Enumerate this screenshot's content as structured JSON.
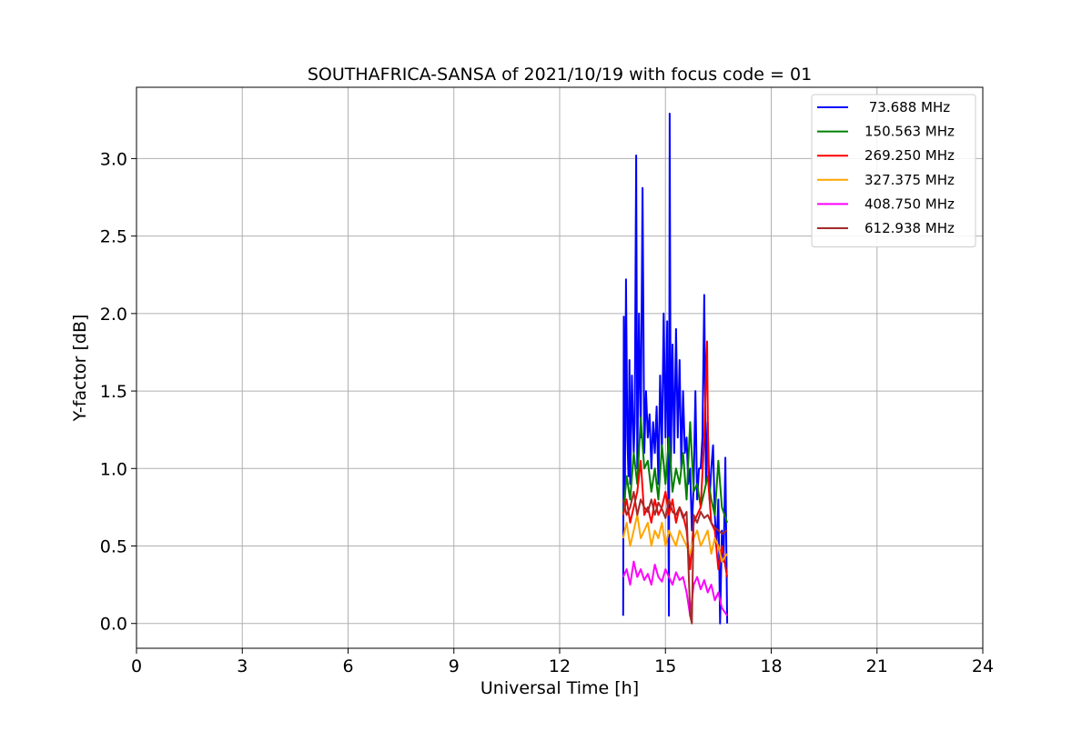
{
  "chart_data": {
    "type": "line",
    "title": "SOUTHAFRICA-SANSA of 2021/10/19 with focus code = 01",
    "xlabel": "Universal Time [h]",
    "ylabel": "Y-factor [dB]",
    "xlim": [
      0,
      24
    ],
    "ylim": [
      -0.16,
      3.46
    ],
    "xticks": [
      0,
      3,
      6,
      9,
      12,
      15,
      18,
      21,
      24
    ],
    "xtick_labels": [
      "0",
      "3",
      "6",
      "9",
      "12",
      "15",
      "18",
      "21",
      "24"
    ],
    "yticks": [
      0.0,
      0.5,
      1.0,
      1.5,
      2.0,
      2.5,
      3.0
    ],
    "ytick_labels": [
      "0.0",
      "0.5",
      "1.0",
      "1.5",
      "2.0",
      "2.5",
      "3.0"
    ],
    "grid": true,
    "legend_position": "top-right",
    "series": [
      {
        "name": " 73.688 MHz",
        "color": "#0000ff",
        "x": [
          13.8,
          13.82,
          13.85,
          13.88,
          13.92,
          13.95,
          13.98,
          14.0,
          14.05,
          14.1,
          14.13,
          14.17,
          14.2,
          14.25,
          14.3,
          14.35,
          14.4,
          14.45,
          14.5,
          14.55,
          14.6,
          14.65,
          14.7,
          14.75,
          14.8,
          14.85,
          14.9,
          14.95,
          15.0,
          15.05,
          15.1,
          15.12,
          15.15,
          15.2,
          15.25,
          15.3,
          15.35,
          15.4,
          15.45,
          15.5,
          15.55,
          15.6,
          15.65,
          15.7,
          15.75,
          15.8,
          15.85,
          15.9,
          15.95,
          16.0,
          16.05,
          16.1,
          16.15,
          16.2,
          16.25,
          16.3,
          16.35,
          16.4,
          16.45,
          16.5,
          16.55,
          16.6,
          16.65,
          16.7,
          16.75
        ],
        "y": [
          0.05,
          1.98,
          0.8,
          2.22,
          1.2,
          0.95,
          1.7,
          0.9,
          1.6,
          1.1,
          1.3,
          3.02,
          1.0,
          2.0,
          1.2,
          2.81,
          1.1,
          1.5,
          1.2,
          1.35,
          1.0,
          1.3,
          1.1,
          1.4,
          0.9,
          1.6,
          1.1,
          2.0,
          1.2,
          1.95,
          0.05,
          3.29,
          1.0,
          1.8,
          1.1,
          1.9,
          1.2,
          1.7,
          1.0,
          1.5,
          1.1,
          1.2,
          0.9,
          1.0,
          0.6,
          0.9,
          1.5,
          0.8,
          1.0,
          1.0,
          1.2,
          2.12,
          0.9,
          1.3,
          0.8,
          1.0,
          1.15,
          0.7,
          0.5,
          0.8,
          0.0,
          0.6,
          0.4,
          1.07,
          0.0
        ]
      },
      {
        "name": "150.563 MHz",
        "color": "#008000",
        "x": [
          13.8,
          13.9,
          14.0,
          14.1,
          14.2,
          14.3,
          14.4,
          14.5,
          14.6,
          14.7,
          14.8,
          14.9,
          15.0,
          15.1,
          15.2,
          15.3,
          15.4,
          15.5,
          15.6,
          15.7,
          15.8,
          15.9,
          16.0,
          16.1,
          16.2,
          16.3,
          16.4,
          16.5,
          16.6,
          16.75
        ],
        "y": [
          0.7,
          0.95,
          0.8,
          1.1,
          0.9,
          1.33,
          1.0,
          1.05,
          0.85,
          1.0,
          0.8,
          1.15,
          0.9,
          1.2,
          0.85,
          1.0,
          0.9,
          1.1,
          0.8,
          1.3,
          0.85,
          0.9,
          0.75,
          0.85,
          0.95,
          0.8,
          0.7,
          1.05,
          0.75,
          0.65
        ]
      },
      {
        "name": "269.250 MHz",
        "color": "#ff0000",
        "x": [
          13.8,
          13.9,
          14.0,
          14.1,
          14.2,
          14.3,
          14.4,
          14.5,
          14.6,
          14.7,
          14.8,
          14.9,
          15.0,
          15.1,
          15.2,
          15.3,
          15.4,
          15.5,
          15.6,
          15.7,
          15.8,
          15.9,
          16.0,
          16.1,
          16.18,
          16.22,
          16.3,
          16.4,
          16.5,
          16.6,
          16.75
        ],
        "y": [
          0.7,
          0.8,
          0.65,
          0.75,
          0.85,
          1.05,
          0.7,
          0.75,
          0.65,
          0.8,
          0.7,
          0.75,
          0.85,
          0.7,
          0.8,
          0.65,
          0.75,
          0.7,
          0.6,
          0.35,
          0.65,
          0.7,
          0.75,
          1.2,
          1.82,
          0.9,
          0.65,
          0.6,
          0.35,
          0.5,
          0.3
        ]
      },
      {
        "name": "327.375 MHz",
        "color": "#ffa500",
        "x": [
          13.8,
          13.9,
          14.0,
          14.1,
          14.2,
          14.3,
          14.4,
          14.5,
          14.6,
          14.7,
          14.8,
          14.9,
          15.0,
          15.1,
          15.2,
          15.3,
          15.4,
          15.5,
          15.6,
          15.7,
          15.8,
          15.9,
          16.0,
          16.1,
          16.2,
          16.3,
          16.4,
          16.5,
          16.6,
          16.75
        ],
        "y": [
          0.55,
          0.65,
          0.5,
          0.6,
          0.7,
          0.55,
          0.6,
          0.65,
          0.5,
          0.6,
          0.55,
          0.65,
          0.5,
          0.6,
          0.55,
          0.5,
          0.6,
          0.55,
          0.5,
          0.45,
          0.55,
          0.6,
          0.5,
          0.55,
          0.6,
          0.45,
          0.55,
          0.5,
          0.4,
          0.45
        ]
      },
      {
        "name": "408.750 MHz",
        "color": "#ff00ff",
        "x": [
          13.8,
          13.9,
          14.0,
          14.1,
          14.2,
          14.3,
          14.4,
          14.5,
          14.6,
          14.7,
          14.8,
          14.9,
          15.0,
          15.1,
          15.2,
          15.3,
          15.4,
          15.5,
          15.6,
          15.7,
          15.8,
          15.9,
          16.0,
          16.1,
          16.2,
          16.3,
          16.4,
          16.5,
          16.6,
          16.75
        ],
        "y": [
          0.3,
          0.35,
          0.25,
          0.4,
          0.3,
          0.35,
          0.28,
          0.32,
          0.25,
          0.38,
          0.3,
          0.27,
          0.35,
          0.3,
          0.25,
          0.33,
          0.28,
          0.3,
          0.2,
          0.05,
          0.25,
          0.3,
          0.22,
          0.28,
          0.2,
          0.25,
          0.15,
          0.2,
          0.1,
          0.05
        ]
      },
      {
        "name": "612.938 MHz",
        "color": "#a52a2a",
        "x": [
          13.8,
          13.9,
          14.0,
          14.1,
          14.2,
          14.3,
          14.4,
          14.5,
          14.6,
          14.7,
          14.8,
          14.9,
          15.0,
          15.1,
          15.2,
          15.3,
          15.4,
          15.5,
          15.6,
          15.7,
          15.75,
          15.8,
          15.9,
          16.0,
          16.1,
          16.2,
          16.3,
          16.4,
          16.5,
          16.6,
          16.75
        ],
        "y": [
          0.8,
          0.7,
          0.75,
          0.85,
          0.7,
          0.8,
          0.75,
          0.72,
          0.8,
          0.7,
          0.78,
          0.74,
          0.68,
          0.8,
          0.72,
          0.7,
          0.75,
          0.68,
          0.72,
          0.05,
          0.0,
          0.7,
          0.65,
          0.72,
          0.68,
          0.7,
          0.65,
          0.62,
          0.6,
          0.58,
          0.6
        ]
      }
    ]
  }
}
